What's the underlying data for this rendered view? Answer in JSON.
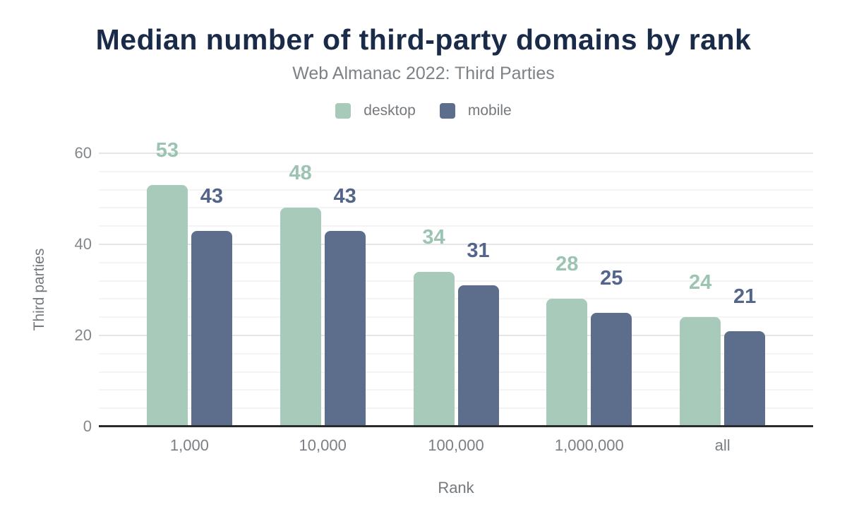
{
  "chart_data": {
    "type": "bar",
    "title": "Median number of third-party domains by rank",
    "subtitle": "Web Almanac 2022: Third Parties",
    "categories": [
      "1,000",
      "10,000",
      "100,000",
      "1,000,000",
      "all"
    ],
    "series": [
      {
        "name": "desktop",
        "color": "#a8caba",
        "label_color": "#9cc4b2",
        "values": [
          53,
          48,
          34,
          28,
          24
        ]
      },
      {
        "name": "mobile",
        "color": "#5d6e8d",
        "label_color": "#53658b",
        "values": [
          43,
          43,
          31,
          25,
          21
        ]
      }
    ],
    "xlabel": "Rank",
    "ylabel": "Third parties",
    "y_ticks": [
      0,
      20,
      40,
      60
    ],
    "ylim": [
      0,
      60
    ],
    "grid": {
      "major_every": 20,
      "minor_every": 4,
      "major_color": "#e5e5e5",
      "minor_color": "#f4f4f4"
    },
    "legend_position": "top",
    "value_labels": true,
    "axis_line_color": "#2b2b2b",
    "title_color": "#1a2b49",
    "text_color": "#75797e",
    "background": "#ffffff"
  }
}
